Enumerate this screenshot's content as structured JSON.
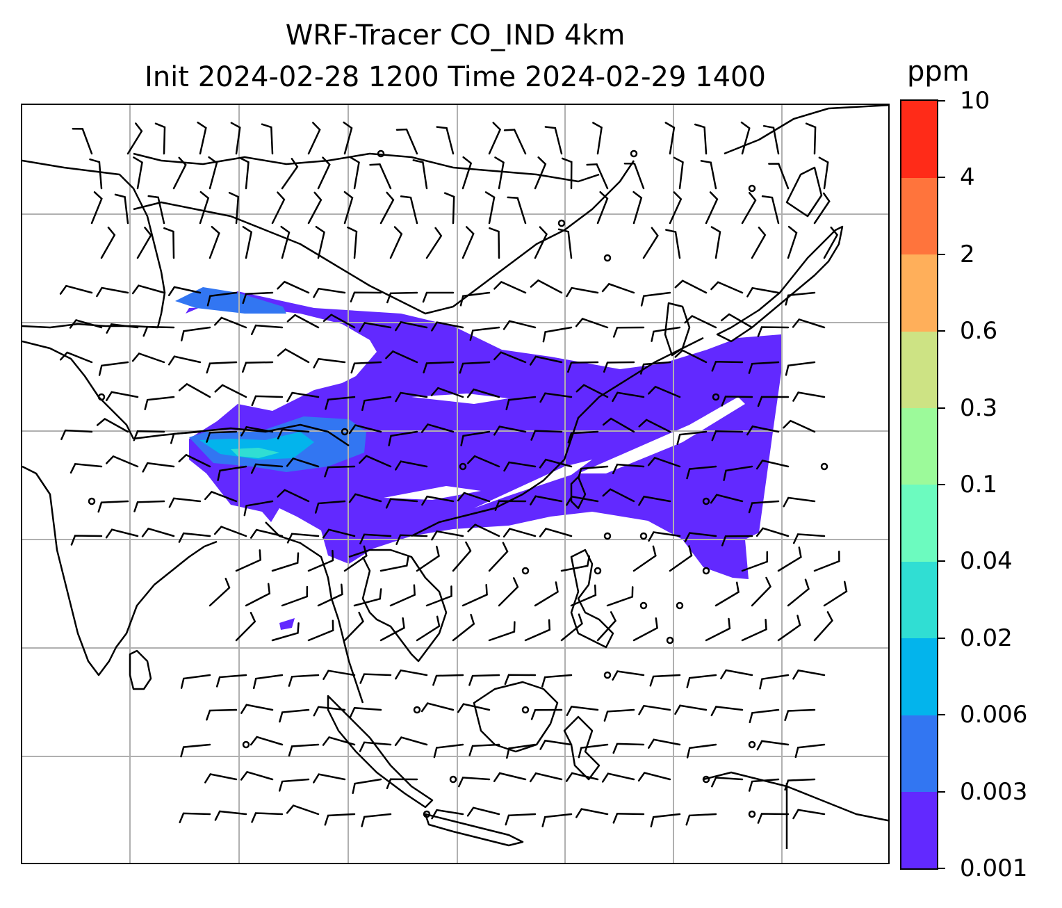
{
  "title_line1": "WRF-Tracer CO_IND 4km",
  "title_line2": "Init 2024-02-28 1200 Time 2024-02-29 1400",
  "colorbar": {
    "unit": "ppm",
    "ticks": [
      "0.001",
      "0.003",
      "0.006",
      "0.02",
      "0.04",
      "0.1",
      "0.3",
      "0.6",
      "2",
      "4",
      "10"
    ],
    "colors": [
      "#6229ff",
      "#3276f2",
      "#03b4ec",
      "#30ded3",
      "#6cfbbf",
      "#9cfa9a",
      "#cde384",
      "#ffaf5a",
      "#ff743c",
      "#ff2b18"
    ]
  },
  "map": {
    "features": [
      "coastlines",
      "country-borders",
      "gridlines",
      "wind-barbs",
      "co-tracer-plume"
    ],
    "gridline_color": "#b0b0b0"
  }
}
